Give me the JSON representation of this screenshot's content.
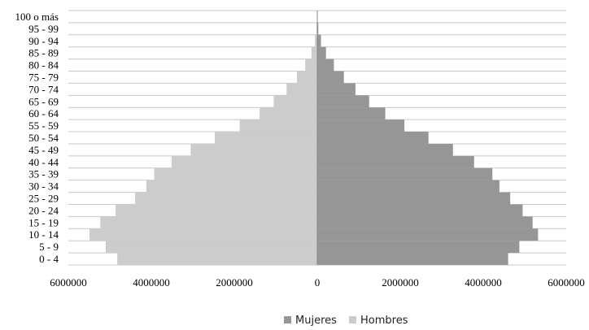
{
  "chart_data": {
    "type": "bar",
    "orientation": "horizontal",
    "layout": "population-pyramid",
    "categories": [
      "0 - 4",
      "5 - 9",
      "10 - 14",
      "15 - 19",
      "20 - 24",
      "25 - 29",
      "30 - 34",
      "35 - 39",
      "40 - 44",
      "45 - 49",
      "50 - 54",
      "55 - 59",
      "60 - 64",
      "65 - 69",
      "70 - 74",
      "75 - 79",
      "80 - 84",
      "85 - 89",
      "90 - 94",
      "95 - 99",
      "100 o más"
    ],
    "series": [
      {
        "name": "Mujeres",
        "color": "#969696",
        "side": "right",
        "values": [
          4600000,
          4870000,
          5320000,
          5190000,
          4950000,
          4650000,
          4390000,
          4220000,
          3780000,
          3270000,
          2680000,
          2100000,
          1640000,
          1250000,
          920000,
          640000,
          400000,
          210000,
          90000,
          25000,
          5000
        ]
      },
      {
        "name": "Hombres",
        "color": "#cccccc",
        "side": "left",
        "values": [
          4820000,
          5100000,
          5490000,
          5230000,
          4860000,
          4390000,
          4120000,
          3930000,
          3510000,
          3050000,
          2470000,
          1870000,
          1390000,
          1050000,
          740000,
          490000,
          290000,
          140000,
          55000,
          15000,
          3000
        ]
      }
    ],
    "xlim": [
      -6000000,
      6000000
    ],
    "xticks": [
      -6000000,
      -4000000,
      -2000000,
      0,
      2000000,
      4000000,
      6000000
    ],
    "xtick_labels": [
      "6000000",
      "4000000",
      "2000000",
      "0",
      "2000000",
      "4000000",
      "6000000"
    ],
    "grid": true,
    "legend": "bottom-center",
    "title": "",
    "xlabel": "",
    "ylabel": ""
  }
}
